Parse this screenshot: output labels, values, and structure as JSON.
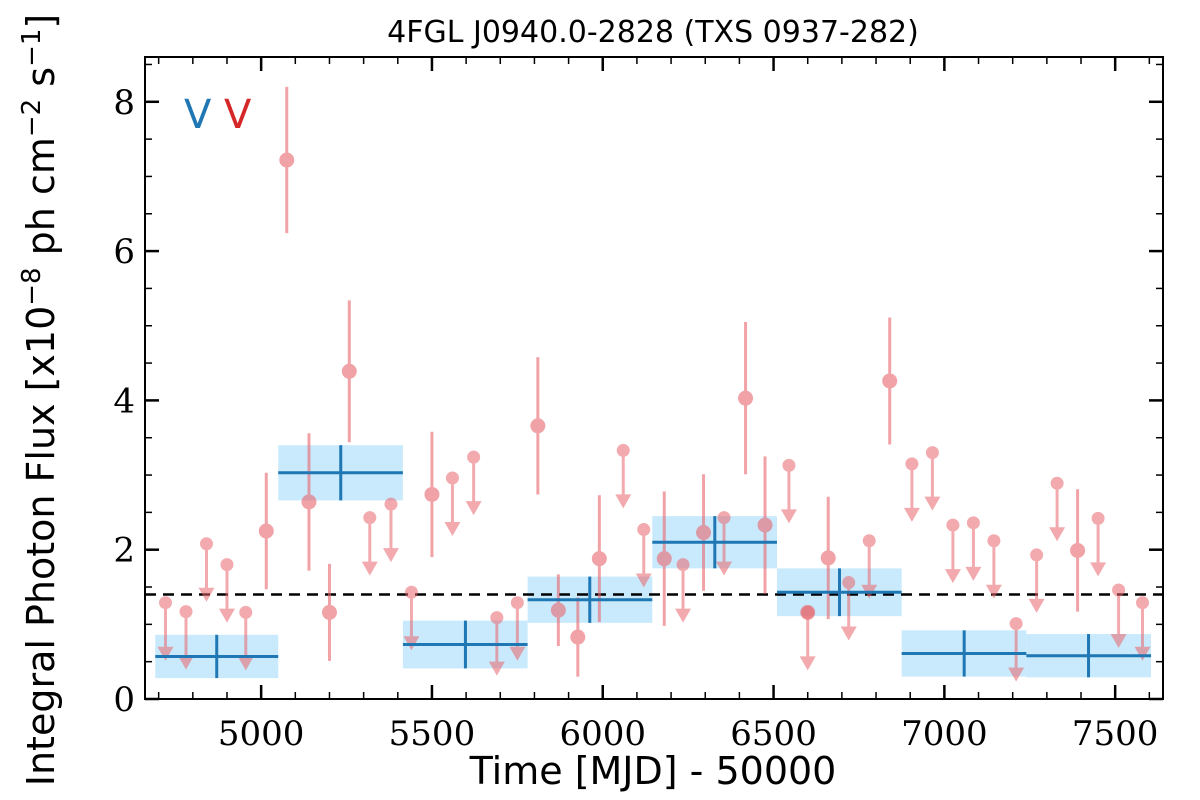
{
  "chart_data": {
    "type": "scatter",
    "title": "4FGL J0940.0-2828 (TXS 0937-282)",
    "xlabel": "Time [MJD] - 50000",
    "ylabel": "Integral Photon Flux [x10$^{-8}$ ph cm$^{-2}$ s$^{-1}$]",
    "ylabel_parts": {
      "main": "Integral Photon Flux [x10",
      "exp1": "−8",
      "mid1": " ph cm",
      "exp2": "−2",
      "mid2": " s",
      "exp3": "−1",
      "end": "]"
    },
    "xlim": [
      4660,
      7640
    ],
    "ylim": [
      0,
      8.6
    ],
    "x_ticks": [
      5000,
      5500,
      6000,
      6500,
      7000,
      7500
    ],
    "y_ticks": [
      0,
      2,
      4,
      6,
      8
    ],
    "x_tick_labels": [
      "5000",
      "5500",
      "6000",
      "6500",
      "7000",
      "7500"
    ],
    "y_tick_labels": [
      "0",
      "2",
      "4",
      "6",
      "8"
    ],
    "grid": false,
    "legend_markers": [
      {
        "text": "V",
        "color": "#1f77b4"
      },
      {
        "text": "V",
        "color": "#d62728"
      }
    ],
    "mean_flux": 1.4,
    "colors": {
      "detection": "#e8666d",
      "upper_limit": "#e8666d",
      "bin": "#1f77b4",
      "bin_fill": "#bfe6fb",
      "mean_line": "#000000"
    },
    "series": [
      {
        "kind": "detections",
        "points": [
          {
            "x": 5015,
            "y": 2.25,
            "err": 0.78
          },
          {
            "x": 5075,
            "y": 7.22,
            "err": 0.98
          },
          {
            "x": 5140,
            "y": 2.64,
            "err": 0.92
          },
          {
            "x": 5200,
            "y": 1.16,
            "err": 0.65
          },
          {
            "x": 5258,
            "y": 4.39,
            "err": 0.95
          },
          {
            "x": 5500,
            "y": 2.74,
            "err": 0.84
          },
          {
            "x": 5810,
            "y": 3.66,
            "err": 0.92
          },
          {
            "x": 5870,
            "y": 1.19,
            "err": 0.48
          },
          {
            "x": 5927,
            "y": 0.83,
            "err": 0.53
          },
          {
            "x": 5990,
            "y": 1.88,
            "err": 0.85
          },
          {
            "x": 6180,
            "y": 1.88,
            "err": 0.9
          },
          {
            "x": 6295,
            "y": 2.23,
            "err": 0.78
          },
          {
            "x": 6418,
            "y": 4.03,
            "err": 1.02
          },
          {
            "x": 6475,
            "y": 2.33,
            "err": 0.92
          },
          {
            "x": 6600,
            "y": 1.16,
            "err": 0.0
          },
          {
            "x": 6660,
            "y": 1.89,
            "err": 0.82
          },
          {
            "x": 6840,
            "y": 4.26,
            "err": 0.85
          },
          {
            "x": 7390,
            "y": 1.99,
            "err": 0.82
          }
        ]
      },
      {
        "kind": "upper_limits",
        "points": [
          {
            "x": 4720,
            "y": 1.29
          },
          {
            "x": 4780,
            "y": 1.17
          },
          {
            "x": 4840,
            "y": 2.08
          },
          {
            "x": 4900,
            "y": 1.8
          },
          {
            "x": 4955,
            "y": 1.16
          },
          {
            "x": 5318,
            "y": 2.43
          },
          {
            "x": 5380,
            "y": 2.61
          },
          {
            "x": 5440,
            "y": 1.43
          },
          {
            "x": 5560,
            "y": 2.96
          },
          {
            "x": 5622,
            "y": 3.24
          },
          {
            "x": 5690,
            "y": 1.09
          },
          {
            "x": 5750,
            "y": 1.29
          },
          {
            "x": 6060,
            "y": 3.33
          },
          {
            "x": 6120,
            "y": 2.27
          },
          {
            "x": 6235,
            "y": 1.8
          },
          {
            "x": 6355,
            "y": 2.43
          },
          {
            "x": 6545,
            "y": 3.13
          },
          {
            "x": 6600,
            "y": 1.16
          },
          {
            "x": 6720,
            "y": 1.56
          },
          {
            "x": 6780,
            "y": 2.12
          },
          {
            "x": 6905,
            "y": 3.15
          },
          {
            "x": 6965,
            "y": 3.3
          },
          {
            "x": 7025,
            "y": 2.33
          },
          {
            "x": 7085,
            "y": 2.36
          },
          {
            "x": 7145,
            "y": 2.12
          },
          {
            "x": 7210,
            "y": 1.01
          },
          {
            "x": 7270,
            "y": 1.93
          },
          {
            "x": 7330,
            "y": 2.89
          },
          {
            "x": 7450,
            "y": 2.42
          },
          {
            "x": 7510,
            "y": 1.46
          },
          {
            "x": 7580,
            "y": 1.29
          }
        ]
      },
      {
        "kind": "bins",
        "bins": [
          {
            "x0": 4690,
            "x1": 5050,
            "xc": 4870,
            "y": 0.57,
            "err": 0.29
          },
          {
            "x0": 5050,
            "x1": 5415,
            "xc": 5233,
            "y": 3.03,
            "err": 0.37
          },
          {
            "x0": 5415,
            "x1": 5780,
            "xc": 5598,
            "y": 0.73,
            "err": 0.32
          },
          {
            "x0": 5780,
            "x1": 6145,
            "xc": 5962,
            "y": 1.33,
            "err": 0.31
          },
          {
            "x0": 6145,
            "x1": 6510,
            "xc": 6328,
            "y": 2.1,
            "err": 0.35
          },
          {
            "x0": 6510,
            "x1": 6875,
            "xc": 6693,
            "y": 1.43,
            "err": 0.32
          },
          {
            "x0": 6875,
            "x1": 7240,
            "xc": 7058,
            "y": 0.61,
            "err": 0.31
          },
          {
            "x0": 7240,
            "x1": 7605,
            "xc": 7422,
            "y": 0.58,
            "err": 0.29
          }
        ]
      }
    ]
  }
}
